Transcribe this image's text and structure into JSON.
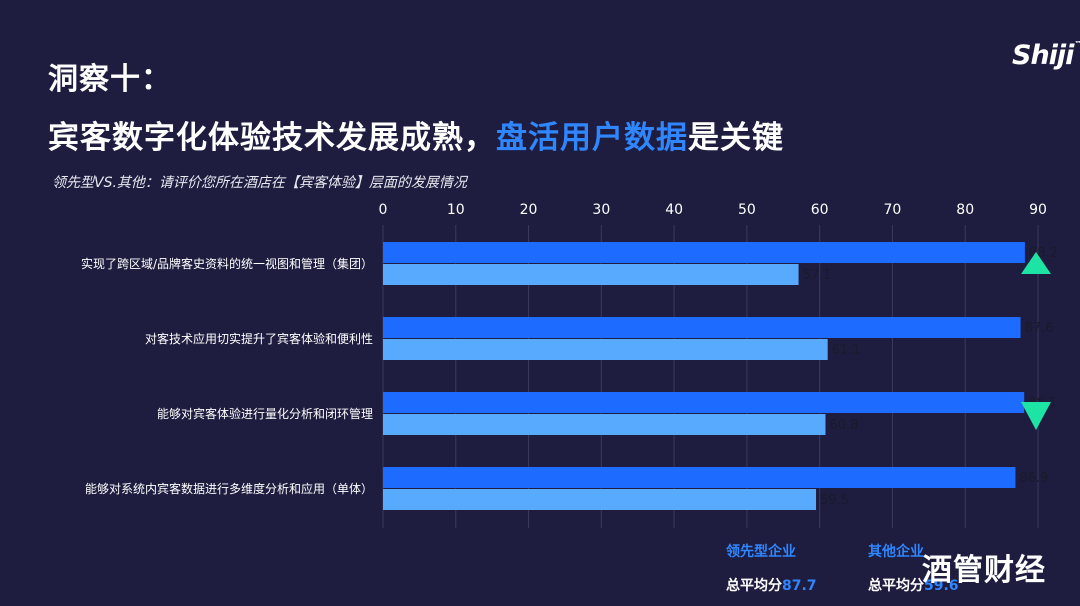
{
  "header": {
    "slide_label": "洞察十：",
    "headline_part1": "宾客数字化体验技术发展成熟，",
    "headline_highlight": "盘活用户数据",
    "headline_part2": "是关键",
    "chart_subtitle": "领先型VS.其他：请评价您所在酒店在【宾客体验】层面的发展情况",
    "logo": "Shiji"
  },
  "legend": [
    {
      "name": "领先型企业",
      "avg_label": "总平均分",
      "avg_value": "87.7"
    },
    {
      "name": "其他企业",
      "avg_label": "总平均分",
      "avg_value": "59.6"
    }
  ],
  "watermark": "酒管财经",
  "colors": {
    "background": "#1e1d3f",
    "leading_bar": "#1d6bff",
    "other_bar": "#58aaff",
    "accent_text": "#2f86ff",
    "marker": "#1de3a5",
    "tick_text": "#ffffff",
    "bar_label": "#1a1a2a"
  },
  "chart_data": {
    "type": "bar",
    "orientation": "horizontal",
    "categories": [
      "实现了跨区域/品牌客史资料的统一视图和管理（集团）",
      "对客技术应用切实提升了宾客体验和便利性",
      "能够对宾客体验进行量化分析和闭环管理",
      "能够对系统内宾客数据进行多维度分析和应用（单体）"
    ],
    "series": [
      {
        "name": "领先型企业",
        "values": [
          88.2,
          87.6,
          88.1,
          86.9
        ]
      },
      {
        "name": "其他企业",
        "values": [
          57.1,
          61.1,
          60.8,
          59.5
        ]
      }
    ],
    "value_labels": [
      "88.2",
      "57.1",
      "87.6",
      "61.1",
      "88.1",
      "60.8",
      "86.9",
      "59.5"
    ],
    "xlim": [
      0,
      90
    ],
    "xticks": [
      "0",
      "10",
      "20",
      "30",
      "40",
      "50",
      "60",
      "70",
      "80",
      "90"
    ],
    "markers": [
      {
        "category_index": 0,
        "shape": "triangle-up"
      },
      {
        "category_index": 2,
        "shape": "triangle-down"
      }
    ],
    "grid": "vertical"
  }
}
